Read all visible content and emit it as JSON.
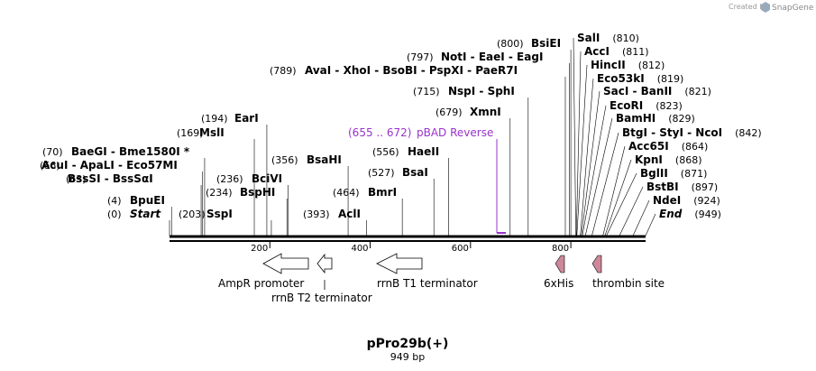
{
  "credit": {
    "prefix": "Created by",
    "brand": "SnapGene"
  },
  "map": {
    "name": "pPro29b(+)",
    "length_label": "949 bp",
    "length": 949,
    "ticks": [
      200,
      400,
      600,
      800
    ]
  },
  "sites": [
    {
      "pos": "(0)",
      "name": "Start",
      "italic": true,
      "at": 0
    },
    {
      "pos": "(4)",
      "name": "BpuEI",
      "at": 4
    },
    {
      "pos": "(63)",
      "name": "BssSI  -  BssSαI",
      "at": 63
    },
    {
      "pos": "(66)",
      "name": "AcuI  -  ApaLI  -  Eco57MI",
      "at": 66
    },
    {
      "pos": "(70)",
      "name": "BaeGI  -  Bme1580I *",
      "at": 70
    },
    {
      "pos": "(169)",
      "name": "MslI",
      "at": 169
    },
    {
      "pos": "(194)",
      "name": "EarI",
      "at": 194
    },
    {
      "pos": "(203)",
      "name": "SspI",
      "at": 203
    },
    {
      "pos": "(234)",
      "name": "BspHI",
      "at": 234
    },
    {
      "pos": "(236)",
      "name": "BciVI",
      "at": 236
    },
    {
      "pos": "(356)",
      "name": "BsaHI",
      "at": 356
    },
    {
      "pos": "(393)",
      "name": "AclI",
      "at": 393
    },
    {
      "pos": "(464)",
      "name": "BmrI",
      "at": 464
    },
    {
      "pos": "(527)",
      "name": "BsaI",
      "at": 527
    },
    {
      "pos": "(556)",
      "name": "HaeII",
      "at": 556
    },
    {
      "pos": "(679)",
      "name": "XmnI",
      "at": 679
    },
    {
      "pos": "(715)",
      "name": "NspI  -  SphI",
      "at": 715
    },
    {
      "pos": "(789)",
      "name": "AvaI  -  XhoI  -  BsoBI  -  PspXI  -  PaeR7I",
      "at": 789
    },
    {
      "pos": "(797)",
      "name": "NotI  -  EaeI  -  EagI",
      "at": 797
    },
    {
      "pos": "(800)",
      "name": "BsiEI",
      "at": 800
    },
    {
      "pos": "(810)",
      "name": "SalI",
      "at": 810
    },
    {
      "pos": "(811)",
      "name": "AccI",
      "at": 811
    },
    {
      "pos": "(812)",
      "name": "HincII",
      "at": 812
    },
    {
      "pos": "(819)",
      "name": "Eco53kI",
      "at": 819
    },
    {
      "pos": "(821)",
      "name": "SacI  -  BanII",
      "at": 821
    },
    {
      "pos": "(823)",
      "name": "EcoRI",
      "at": 823
    },
    {
      "pos": "(829)",
      "name": "BamHI",
      "at": 829
    },
    {
      "pos": "(842)",
      "name": "BtgI  -  StyI  -  NcoI",
      "at": 842
    },
    {
      "pos": "(864)",
      "name": "Acc65I",
      "at": 864
    },
    {
      "pos": "(868)",
      "name": "KpnI",
      "at": 868
    },
    {
      "pos": "(871)",
      "name": "BglII",
      "at": 871
    },
    {
      "pos": "(897)",
      "name": "BstBI",
      "at": 897
    },
    {
      "pos": "(924)",
      "name": "NdeI",
      "at": 924
    },
    {
      "pos": "(949)",
      "name": "End",
      "italic": true,
      "at": 949
    }
  ],
  "primer": {
    "range": "(655 .. 672)",
    "name": "pBAD Reverse",
    "start": 655,
    "end": 672,
    "color": "#9933cc"
  },
  "features": [
    {
      "name": "AmpR promoter",
      "color": "#ffffff"
    },
    {
      "name": "rrnB T2 terminator",
      "color": "#ffffff"
    },
    {
      "name": "rrnB T1 terminator",
      "color": "#ffffff"
    },
    {
      "name": "6xHis",
      "color": "#cc8899"
    },
    {
      "name": "thrombin site",
      "color": "#cc8899"
    }
  ]
}
